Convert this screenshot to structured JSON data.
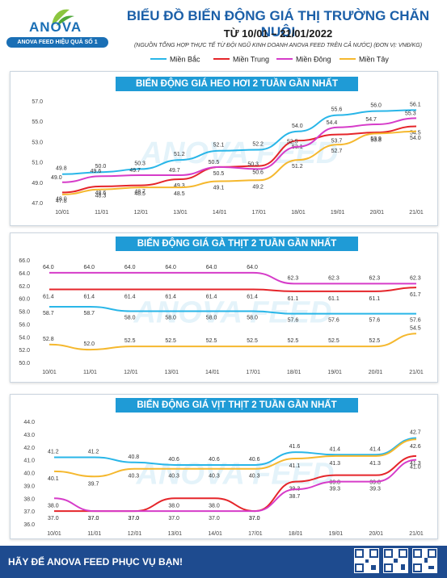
{
  "header": {
    "logo_text": "ANOVA FEED",
    "logo_tagline": "ANOVA FEED HIỆU QUẢ SỐ 1",
    "title": "BIỂU ĐỒ BIẾN ĐỘNG GIÁ THỊ TRƯỜNG CHĂN NUÔI",
    "subtitle": "TỪ 10/01 – 21/01/2022",
    "source_note": "(NGUỒN TỔNG HỢP THỰC TẾ TỪ ĐỘI NGŨ KINH DOANH ANOVA FEED TRÊN CẢ NƯỚC)   (ĐƠN VỊ: VNĐ/KG)"
  },
  "legend": [
    {
      "name": "Miền Bắc",
      "color": "#29b6e8"
    },
    {
      "name": "Miền Trung",
      "color": "#e5252a"
    },
    {
      "name": "Miền Đông",
      "color": "#d63cc9"
    },
    {
      "name": "Miền Tây",
      "color": "#f5b82e"
    }
  ],
  "watermark": "ANOVA FEED",
  "chart_data": [
    {
      "type": "line",
      "title": "BIẾN ĐỘNG GIÁ HEO HƠI 2 TUẦN GẦN NHẤT",
      "categories": [
        "10/01",
        "11/01",
        "12/01",
        "13/01",
        "14/01",
        "17/01",
        "18/01",
        "19/01",
        "20/01",
        "21/01"
      ],
      "ylim": [
        47.0,
        57.0
      ],
      "yticks": [
        "47.0",
        "49.0",
        "51.0",
        "53.0",
        "55.0",
        "57.0"
      ],
      "series": [
        {
          "name": "Miền Bắc",
          "color": "#29b6e8",
          "values": [
            49.8,
            50.0,
            50.3,
            51.2,
            52.1,
            52.2,
            54.0,
            55.6,
            56.0,
            56.1
          ]
        },
        {
          "name": "Miền Trung",
          "color": "#e5252a",
          "values": [
            48.0,
            48.6,
            48.7,
            49.3,
            50.5,
            50.6,
            53.1,
            53.7,
            53.9,
            54.5
          ]
        },
        {
          "name": "Miền Đông",
          "color": "#d63cc9",
          "values": [
            49.0,
            49.6,
            49.7,
            49.7,
            50.5,
            50.3,
            52.5,
            54.4,
            54.7,
            55.3
          ]
        },
        {
          "name": "Miền Tây",
          "color": "#f5b82e",
          "values": [
            47.8,
            48.3,
            48.5,
            48.5,
            49.1,
            49.2,
            51.2,
            52.7,
            53.8,
            54.0
          ]
        }
      ]
    },
    {
      "type": "line",
      "title": "BIẾN ĐỘNG GIÁ GÀ THỊT 2 TUẦN GẦN NHẤT",
      "categories": [
        "10/01",
        "11/01",
        "12/01",
        "13/01",
        "14/01",
        "17/01",
        "18/01",
        "19/01",
        "20/01",
        "21/01"
      ],
      "ylim": [
        50.0,
        66.0
      ],
      "yticks": [
        "50.0",
        "52.0",
        "54.0",
        "56.0",
        "58.0",
        "60.0",
        "62.0",
        "64.0",
        "66.0"
      ],
      "series": [
        {
          "name": "Miền Đông",
          "color": "#d63cc9",
          "values": [
            64.0,
            64.0,
            64.0,
            64.0,
            64.0,
            64.0,
            62.3,
            62.3,
            62.3,
            62.3
          ]
        },
        {
          "name": "Miền Trung",
          "color": "#e5252a",
          "values": [
            61.4,
            61.4,
            61.4,
            61.4,
            61.4,
            61.4,
            61.1,
            61.1,
            61.1,
            61.7
          ]
        },
        {
          "name": "Miền Bắc",
          "color": "#29b6e8",
          "values": [
            58.7,
            58.7,
            58.0,
            58.0,
            58.0,
            58.0,
            57.6,
            57.6,
            57.6,
            57.6
          ]
        },
        {
          "name": "Miền Tây",
          "color": "#f5b82e",
          "values": [
            52.8,
            52.0,
            52.5,
            52.5,
            52.5,
            52.5,
            52.5,
            52.5,
            52.5,
            54.5
          ]
        }
      ]
    },
    {
      "type": "line",
      "title": "BIẾN ĐỘNG GIÁ VỊT THỊT 2 TUẦN GẦN NHẤT",
      "categories": [
        "10/01",
        "11/01",
        "12/01",
        "13/01",
        "14/01",
        "17/01",
        "18/01",
        "19/01",
        "20/01",
        "21/01"
      ],
      "ylim": [
        36.0,
        44.0
      ],
      "yticks": [
        "36.0",
        "37.0",
        "38.0",
        "39.0",
        "40.0",
        "41.0",
        "42.0",
        "43.0",
        "44.0"
      ],
      "series": [
        {
          "name": "Miền Bắc",
          "color": "#29b6e8",
          "values": [
            41.2,
            41.2,
            40.8,
            40.6,
            40.6,
            40.6,
            41.6,
            41.4,
            41.4,
            42.7
          ]
        },
        {
          "name": "Miền Tây",
          "color": "#f5b82e",
          "values": [
            40.1,
            39.7,
            40.3,
            40.3,
            40.3,
            40.3,
            41.1,
            41.3,
            41.3,
            42.6
          ]
        },
        {
          "name": "Miền Trung",
          "color": "#e5252a",
          "values": [
            37.0,
            37.0,
            37.0,
            38.0,
            38.0,
            37.0,
            39.3,
            39.8,
            39.8,
            41.3
          ]
        },
        {
          "name": "Miền Đông",
          "color": "#d63cc9",
          "values": [
            38.0,
            37.0,
            37.0,
            37.0,
            37.0,
            37.0,
            38.7,
            39.3,
            39.3,
            41.0
          ]
        }
      ]
    }
  ],
  "footer": {
    "slogan": "HÃY ĐỂ ANOVA FEED PHỤC VỤ BẠN!"
  }
}
